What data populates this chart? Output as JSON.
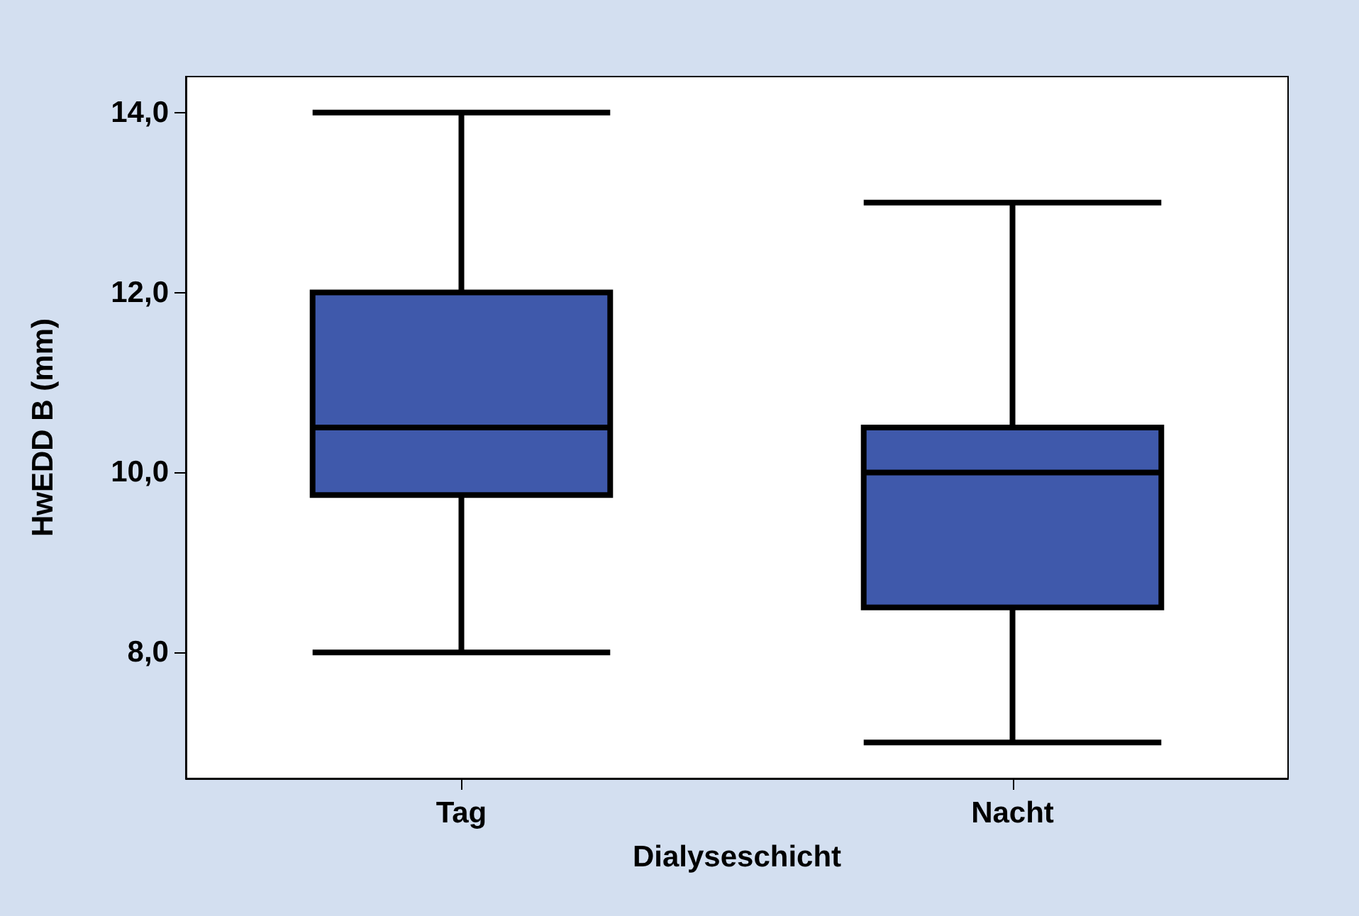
{
  "chart_data": {
    "type": "box",
    "xlabel": "Dialyseschicht",
    "ylabel": "HwEDD B (mm)",
    "categories": [
      "Tag",
      "Nacht"
    ],
    "boxes": [
      {
        "low": 8,
        "q1": 9.75,
        "median": 10.5,
        "q3": 12,
        "high": 14
      },
      {
        "low": 7,
        "q1": 8.5,
        "median": 10,
        "q3": 10.5,
        "high": 13
      }
    ],
    "color": "#3f59ab",
    "ylim": [
      6.6,
      14.4
    ],
    "yticks": [
      {
        "value": 8,
        "label": "8,0"
      },
      {
        "value": 10,
        "label": "10,0"
      },
      {
        "value": 12,
        "label": "12,0"
      },
      {
        "value": 14,
        "label": "14,0"
      }
    ]
  }
}
